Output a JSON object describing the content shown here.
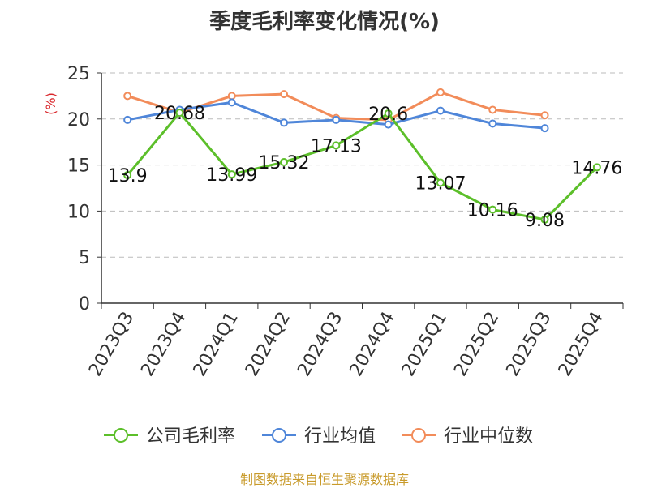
{
  "chart_data": {
    "type": "line",
    "title": "季度毛利率变化情况(%)",
    "ylabel": "(%)",
    "xlabel": "",
    "ylim": [
      0,
      25
    ],
    "yticks": [
      0,
      5,
      10,
      15,
      20,
      25
    ],
    "grid": true,
    "legend_position": "bottom",
    "categories": [
      "2023Q3",
      "2023Q4",
      "2024Q1",
      "2024Q2",
      "2024Q3",
      "2024Q4",
      "2025Q1",
      "2025Q2",
      "2025Q3",
      "2025Q4"
    ],
    "series": [
      {
        "name": "公司毛利率",
        "color": "#5cbf2a",
        "values": [
          13.9,
          20.68,
          13.99,
          15.32,
          17.13,
          20.6,
          13.07,
          10.16,
          9.08,
          14.76
        ],
        "labels": [
          "13.9",
          "20.68",
          "13.99",
          "15.32",
          "17.13",
          "20.6",
          "13.07",
          "10.16",
          "9.08",
          "14.76"
        ]
      },
      {
        "name": "行业均值",
        "color": "#4f86d9",
        "values": [
          19.9,
          21.0,
          21.8,
          19.6,
          19.9,
          19.4,
          20.9,
          19.5,
          19.0,
          null
        ]
      },
      {
        "name": "行业中位数",
        "color": "#f28c5a",
        "values": [
          22.5,
          20.7,
          22.5,
          22.7,
          20.1,
          19.9,
          22.9,
          21.0,
          20.4,
          null
        ]
      }
    ]
  },
  "footer": "制图数据来自恒生聚源数据库"
}
